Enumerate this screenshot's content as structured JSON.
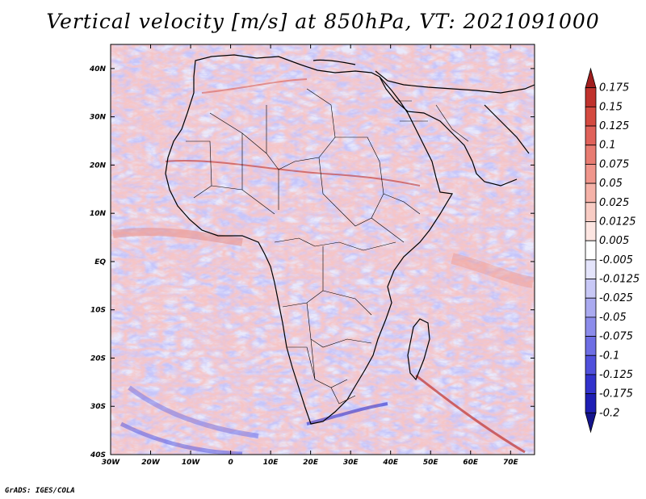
{
  "figure": {
    "title": "Vertical velocity [m/s] at 850hPa, VT: 2021091000",
    "footer": "GrADS: IGES/COLA"
  },
  "map": {
    "region": "Africa",
    "lat_labels": [
      "40N",
      "30N",
      "20N",
      "10N",
      "EQ",
      "10S",
      "20S",
      "30S",
      "40S"
    ],
    "lat_values": [
      40,
      30,
      20,
      10,
      0,
      -10,
      -20,
      -30,
      -40
    ],
    "lon_labels": [
      "30W",
      "20W",
      "10W",
      "0",
      "10E",
      "20E",
      "30E",
      "40E",
      "50E",
      "60E",
      "70E"
    ],
    "lon_values": [
      -30,
      -20,
      -10,
      0,
      10,
      20,
      30,
      40,
      50,
      60,
      70
    ],
    "lon_range": [
      -30,
      76
    ],
    "lat_range": [
      -40,
      45
    ]
  },
  "colorbar": {
    "levels": [
      "0.175",
      "0.15",
      "0.125",
      "0.1",
      "0.075",
      "0.05",
      "0.025",
      "0.0125",
      "0.005",
      "-0.005",
      "-0.0125",
      "-0.025",
      "-0.05",
      "-0.075",
      "-0.1",
      "-0.125",
      "-0.175",
      "-0.2"
    ],
    "colors": [
      "#a01e1e",
      "#c0322d",
      "#d44a40",
      "#e0625a",
      "#e87c72",
      "#f0968c",
      "#f5b2a8",
      "#f8ccc4",
      "#fde6e2",
      "#ffffff",
      "#e4e4fb",
      "#c8c8f6",
      "#aaaaf0",
      "#8c8ceb",
      "#6e6ee4",
      "#5050dc",
      "#3232cc",
      "#1e1eb4",
      "#14148c"
    ]
  }
}
